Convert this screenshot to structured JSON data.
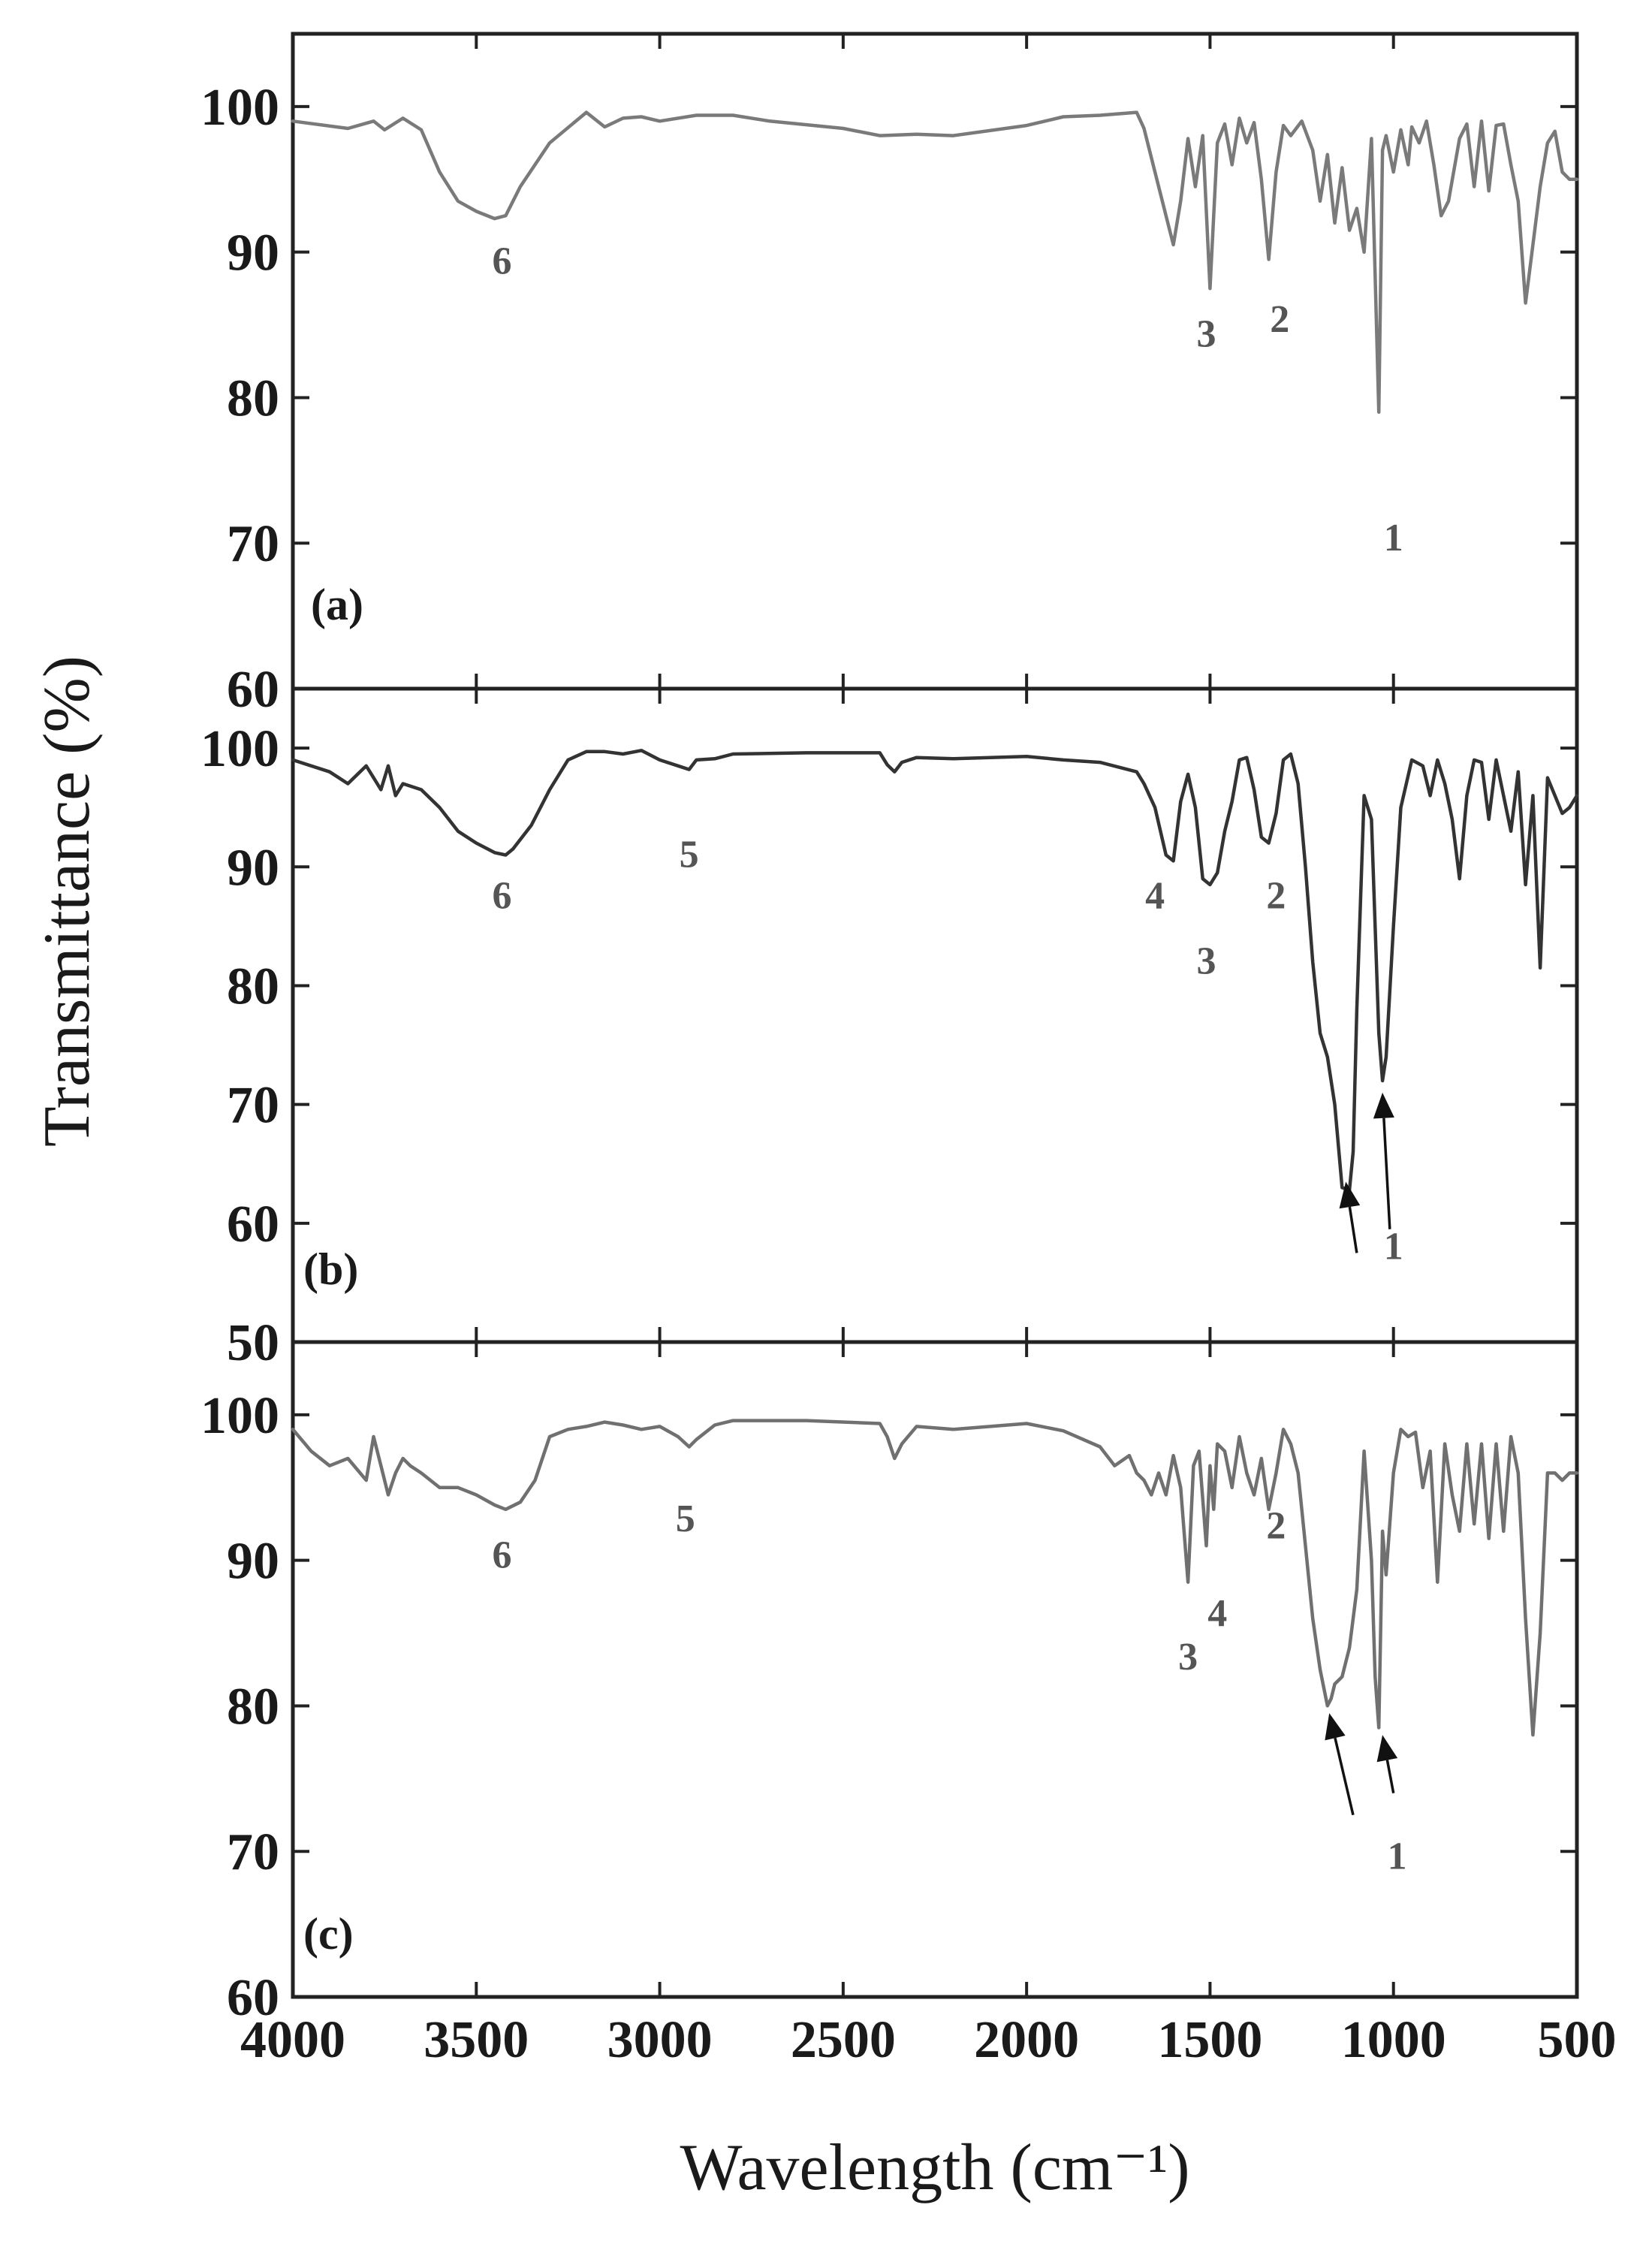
{
  "chart_data": {
    "type": "line",
    "xlabel": "Wavelength (cm⁻¹)",
    "ylabel": "Transmittance (%)",
    "xlim": [
      4000,
      500
    ],
    "x_ticks": [
      "4000",
      "3500",
      "3000",
      "2500",
      "2000",
      "1500",
      "1000",
      "500"
    ],
    "x_tick_values": [
      4000,
      3500,
      3000,
      2500,
      2000,
      1500,
      1000,
      500
    ],
    "grid": false,
    "panels": [
      {
        "id": "a",
        "label": "(a)",
        "ylim": [
          60,
          105
        ],
        "y_ticks": [
          "60",
          "70",
          "80",
          "90",
          "100"
        ],
        "y_tick_values": [
          60,
          70,
          80,
          90,
          100
        ],
        "color": "#7a7a7a",
        "series": {
          "x": [
            4000,
            3850,
            3780,
            3750,
            3700,
            3650,
            3600,
            3550,
            3500,
            3450,
            3420,
            3380,
            3300,
            3200,
            3150,
            3100,
            3050,
            3000,
            2900,
            2800,
            2700,
            2500,
            2400,
            2300,
            2200,
            2000,
            1900,
            1800,
            1700,
            1680,
            1650,
            1600,
            1580,
            1560,
            1540,
            1520,
            1500,
            1480,
            1460,
            1440,
            1420,
            1400,
            1380,
            1360,
            1340,
            1320,
            1300,
            1280,
            1250,
            1220,
            1200,
            1180,
            1160,
            1140,
            1120,
            1100,
            1080,
            1060,
            1040,
            1030,
            1020,
            1000,
            980,
            960,
            950,
            930,
            910,
            890,
            870,
            850,
            820,
            800,
            780,
            760,
            740,
            720,
            700,
            680,
            660,
            640,
            620,
            600,
            580,
            560,
            540,
            520,
            500
          ],
          "y": [
            99,
            98.5,
            99,
            98.4,
            99.2,
            98.4,
            95.5,
            93.5,
            92.8,
            92.3,
            92.5,
            94.5,
            97.5,
            99.6,
            98.6,
            99.2,
            99.3,
            99.0,
            99.4,
            99.4,
            99.0,
            98.5,
            98.0,
            98.1,
            98.0,
            98.7,
            99.3,
            99.4,
            99.6,
            98.5,
            95.5,
            90.5,
            93.5,
            97.8,
            94.5,
            98.0,
            87.5,
            97.5,
            98.8,
            96.0,
            99.2,
            97.5,
            98.9,
            95.0,
            89.5,
            95.5,
            98.7,
            98.0,
            99.0,
            97.0,
            93.5,
            96.7,
            92.0,
            95.8,
            91.5,
            93.0,
            90.0,
            97.8,
            79.0,
            97.0,
            98.0,
            95.5,
            98.4,
            96.0,
            98.6,
            97.5,
            99.0,
            96.0,
            92.5,
            93.5,
            97.8,
            98.8,
            94.5,
            99.0,
            94.2,
            98.7,
            98.8,
            96.0,
            93.5,
            86.5,
            90.5,
            94.5,
            97.5,
            98.3,
            95.5,
            95.0,
            95.0
          ]
        },
        "peak_labels": [
          {
            "text": "6",
            "x": 3430,
            "y": 88.5
          },
          {
            "text": "3",
            "x": 1510,
            "y": 83.5
          },
          {
            "text": "2",
            "x": 1310,
            "y": 84.5
          },
          {
            "text": "1",
            "x": 1000,
            "y": 69.5
          }
        ],
        "arrows": []
      },
      {
        "id": "b",
        "label": "(b)",
        "ylim": [
          50,
          105
        ],
        "y_ticks": [
          "50",
          "60",
          "70",
          "80",
          "90",
          "100"
        ],
        "y_tick_values": [
          50,
          60,
          70,
          80,
          90,
          100
        ],
        "color": "#333333",
        "series": {
          "x": [
            4000,
            3900,
            3850,
            3800,
            3780,
            3760,
            3740,
            3720,
            3700,
            3650,
            3600,
            3550,
            3500,
            3450,
            3420,
            3400,
            3350,
            3300,
            3250,
            3200,
            3150,
            3100,
            3050,
            3000,
            2950,
            2920,
            2900,
            2850,
            2800,
            2600,
            2500,
            2400,
            2380,
            2360,
            2340,
            2300,
            2200,
            2000,
            1900,
            1800,
            1700,
            1680,
            1650,
            1620,
            1600,
            1580,
            1560,
            1540,
            1520,
            1500,
            1480,
            1460,
            1440,
            1420,
            1400,
            1380,
            1360,
            1340,
            1320,
            1300,
            1280,
            1260,
            1240,
            1220,
            1200,
            1180,
            1160,
            1140,
            1120,
            1110,
            1100,
            1080,
            1060,
            1050,
            1040,
            1030,
            1020,
            1000,
            980,
            950,
            920,
            900,
            880,
            860,
            840,
            820,
            800,
            780,
            760,
            740,
            720,
            700,
            680,
            660,
            640,
            620,
            600,
            580,
            560,
            540,
            520,
            500
          ],
          "y": [
            99,
            98,
            97,
            98.5,
            97.5,
            96.5,
            98.5,
            96,
            97,
            96.5,
            95,
            93,
            92,
            91.2,
            91,
            91.5,
            93.5,
            96.5,
            99,
            99.7,
            99.7,
            99.5,
            99.8,
            99.0,
            98.5,
            98.2,
            99.0,
            99.1,
            99.5,
            99.6,
            99.6,
            99.6,
            98.6,
            98.0,
            98.8,
            99.2,
            99.1,
            99.3,
            99.0,
            98.8,
            98.0,
            97.0,
            95.0,
            91.0,
            90.5,
            95.5,
            97.8,
            95.0,
            89.0,
            88.5,
            89.5,
            93.0,
            95.5,
            99.0,
            99.2,
            96.5,
            92.5,
            92.0,
            94.5,
            99.0,
            99.5,
            97.0,
            90.0,
            82.0,
            76.0,
            74.0,
            70.0,
            63.0,
            62.8,
            66.0,
            78.0,
            96.0,
            94.0,
            85.0,
            76.0,
            72.0,
            74.0,
            85.0,
            95.0,
            99.0,
            98.5,
            96.0,
            99.0,
            97.0,
            94.0,
            89.0,
            96.0,
            99.0,
            98.8,
            94.0,
            99.0,
            96.0,
            93.0,
            98.0,
            88.5,
            96.0,
            81.5,
            97.5,
            96.0,
            94.5,
            95.0,
            96.0
          ]
        },
        "peak_labels": [
          {
            "text": "6",
            "x": 3430,
            "y": 86.5
          },
          {
            "text": "5",
            "x": 2920,
            "y": 90.0
          },
          {
            "text": "4",
            "x": 1650,
            "y": 86.5
          },
          {
            "text": "3",
            "x": 1510,
            "y": 81.0
          },
          {
            "text": "2",
            "x": 1320,
            "y": 86.5
          },
          {
            "text": "1",
            "x": 1000,
            "y": 57.0
          }
        ],
        "arrows": [
          {
            "from": [
              1100,
              57.5
            ],
            "to": [
              1130,
              63.5
            ]
          },
          {
            "from": [
              1010,
              59.5
            ],
            "to": [
              1030,
              71.0
            ]
          }
        ]
      },
      {
        "id": "c",
        "label": "(c)",
        "ylim": [
          60,
          105
        ],
        "y_ticks": [
          "60",
          "70",
          "80",
          "90",
          "100"
        ],
        "y_tick_values": [
          60,
          70,
          80,
          90,
          100
        ],
        "color": "#707070",
        "series": {
          "x": [
            4000,
            3950,
            3900,
            3850,
            3800,
            3780,
            3760,
            3740,
            3720,
            3700,
            3680,
            3650,
            3600,
            3550,
            3500,
            3450,
            3420,
            3380,
            3340,
            3300,
            3250,
            3200,
            3150,
            3100,
            3050,
            3000,
            2950,
            2920,
            2900,
            2850,
            2800,
            2600,
            2400,
            2380,
            2360,
            2340,
            2300,
            2200,
            2000,
            1900,
            1800,
            1760,
            1720,
            1700,
            1680,
            1660,
            1640,
            1620,
            1600,
            1580,
            1560,
            1545,
            1530,
            1510,
            1500,
            1490,
            1480,
            1460,
            1440,
            1420,
            1400,
            1380,
            1360,
            1340,
            1320,
            1300,
            1280,
            1260,
            1240,
            1220,
            1200,
            1180,
            1170,
            1160,
            1140,
            1120,
            1100,
            1080,
            1060,
            1050,
            1040,
            1030,
            1020,
            1010,
            1000,
            980,
            960,
            940,
            920,
            900,
            880,
            860,
            840,
            820,
            800,
            780,
            760,
            740,
            720,
            700,
            680,
            660,
            640,
            620,
            600,
            580,
            560,
            540,
            520,
            500
          ],
          "y": [
            99,
            97.5,
            96.5,
            97,
            95.5,
            98.5,
            96.5,
            94.5,
            96,
            97,
            96.5,
            96,
            95,
            95,
            94.5,
            93.8,
            93.5,
            94,
            95.5,
            98.5,
            99,
            99.2,
            99.5,
            99.3,
            99.0,
            99.2,
            98.5,
            97.8,
            98.3,
            99.3,
            99.6,
            99.6,
            99.4,
            98.5,
            97.0,
            98.0,
            99.2,
            99.0,
            99.4,
            98.9,
            97.8,
            96.5,
            97.2,
            96.0,
            95.5,
            94.5,
            96.0,
            94.5,
            97.2,
            95.0,
            88.5,
            96.5,
            97.5,
            91.0,
            96.5,
            93.5,
            98.0,
            97.5,
            95.0,
            98.5,
            96.0,
            94.5,
            97.0,
            93.5,
            96.0,
            99.0,
            98.0,
            96.0,
            91.0,
            86.0,
            82.5,
            80.0,
            80.5,
            81.5,
            82.0,
            84.0,
            88.0,
            97.5,
            90.0,
            82.0,
            78.5,
            92.0,
            89.0,
            92.5,
            96.0,
            99.0,
            98.5,
            98.8,
            95.0,
            97.5,
            88.5,
            98.0,
            94.5,
            92.0,
            98.0,
            92.5,
            98.0,
            91.5,
            98.0,
            92.0,
            98.5,
            96.0,
            86.0,
            78.0,
            85.0,
            96.0,
            96.0,
            95.5,
            96.0,
            96.0
          ]
        },
        "peak_labels": [
          {
            "text": "6",
            "x": 3430,
            "y": 89.5
          },
          {
            "text": "5",
            "x": 2930,
            "y": 92.0
          },
          {
            "text": "2",
            "x": 1320,
            "y": 91.5
          },
          {
            "text": "4",
            "x": 1480,
            "y": 85.5
          },
          {
            "text": "3",
            "x": 1560,
            "y": 82.5
          },
          {
            "text": "1",
            "x": 990,
            "y": 68.8
          }
        ],
        "arrows": [
          {
            "from": [
              1110,
              72.5
            ],
            "to": [
              1175,
              79.5
            ]
          },
          {
            "from": [
              1000,
              74.0
            ],
            "to": [
              1030,
              78.0
            ]
          }
        ]
      }
    ]
  }
}
